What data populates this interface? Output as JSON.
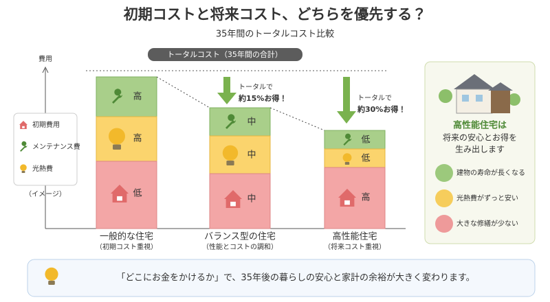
{
  "header": {
    "title": "初期コストと将来コスト、どちらを優先する？",
    "subtitle": "35年間のトータルコスト比較"
  },
  "axis": {
    "y_label": "費用",
    "total_label": "トータルコスト（35年間の合計）"
  },
  "legend": {
    "items": [
      "初期費用",
      "メンテナンス費",
      "光熱費"
    ],
    "note": "（イメージ）"
  },
  "columns": [
    {
      "name": "一般的な住宅",
      "sub": "（初期コスト重視）",
      "maintenance": "高",
      "energy": "高",
      "initial": "低"
    },
    {
      "name": "バランス型の住宅",
      "sub": "（性能とコストの調和）",
      "maintenance": "中",
      "energy": "中",
      "initial": "中"
    },
    {
      "name": "高性能住宅",
      "sub": "（将来コスト重視）",
      "maintenance": "低",
      "energy": "低",
      "initial": "高"
    }
  ],
  "savings": [
    {
      "line1": "トータルで",
      "line2": "約15%お得！"
    },
    {
      "line1": "トータルで",
      "line2": "約30%お得！"
    }
  ],
  "panel": {
    "heading": "高性能住宅は",
    "lines": [
      "将来の安心とお得を",
      "生み出します"
    ],
    "points": [
      "建物の寿命が長くなる",
      "光熱費がずっと安い",
      "大きな修繕が少ない"
    ]
  },
  "banner": {
    "text": "「どこにお金をかけるか」で、35年後の暮らしの安心と家計の余裕が大きく変わります。"
  }
}
